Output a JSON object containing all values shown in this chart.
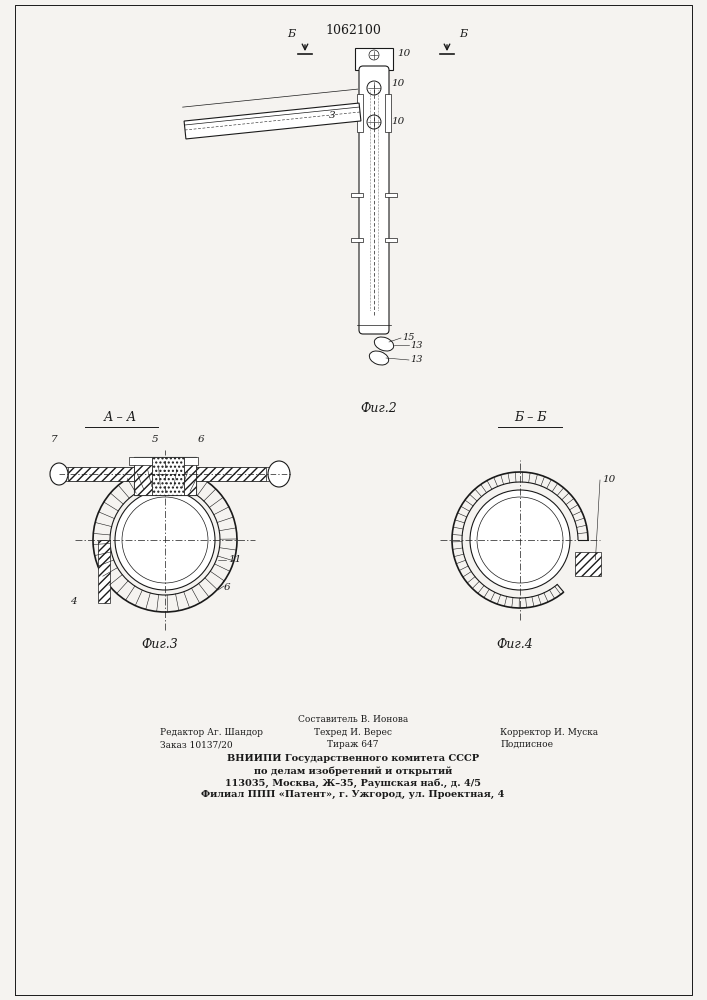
{
  "patent_number": "1062100",
  "bg_color": "#f5f3f0",
  "line_color": "#1a1a1a",
  "fig2_label": "Фиг.2",
  "fig3_label": "Фиг.3",
  "fig4_label": "Фиг.4",
  "section_aa": "А – А",
  "section_bb": "Б – Б",
  "footer_line1": "Составитель В. Ионова",
  "footer_line2_left": "Редактор Аг. Шандор",
  "footer_line2_mid": "Техред И. Верес",
  "footer_line2_right": "Корректор И. Муска",
  "footer_line3_left": "Заказ 10137/20",
  "footer_line3_mid": "Тираж 647",
  "footer_line3_right": "Подписное",
  "footer_line4": "ВНИИПИ Государственного комитета СССР",
  "footer_line5": "по делам изобретений и открытий",
  "footer_line6": "113035, Москва, Ж–35, Раушская наб., д. 4/5",
  "footer_line7": "Филиал ППП «Патент», г. Ужгород, ул. Проектная, 4"
}
